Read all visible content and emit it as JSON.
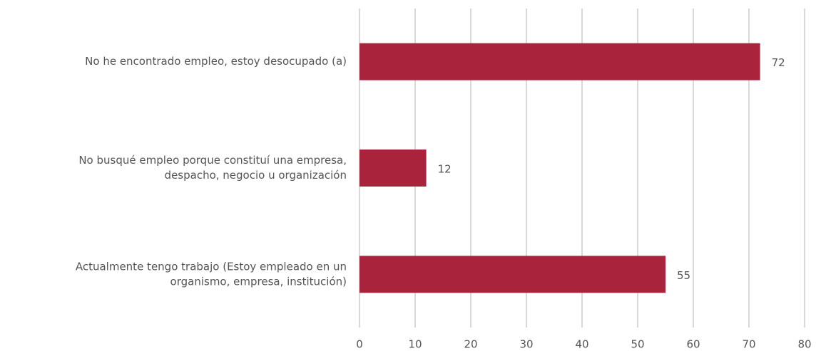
{
  "chart_data": {
    "type": "barh",
    "categories": [
      [
        "No he encontrado empleo, estoy desocupado (a)"
      ],
      [
        "No busqué empleo porque constituí una empresa,",
        "despacho, negocio u organización"
      ],
      [
        "Actualmente tengo trabajo (Estoy empleado en un",
        "organismo, empresa, institución)"
      ]
    ],
    "values": [
      72,
      12,
      55
    ],
    "color": "#a8233b",
    "xlim": [
      0,
      80
    ],
    "xticks": [
      0,
      10,
      20,
      30,
      40,
      50,
      60,
      70,
      80
    ],
    "grid": true
  }
}
